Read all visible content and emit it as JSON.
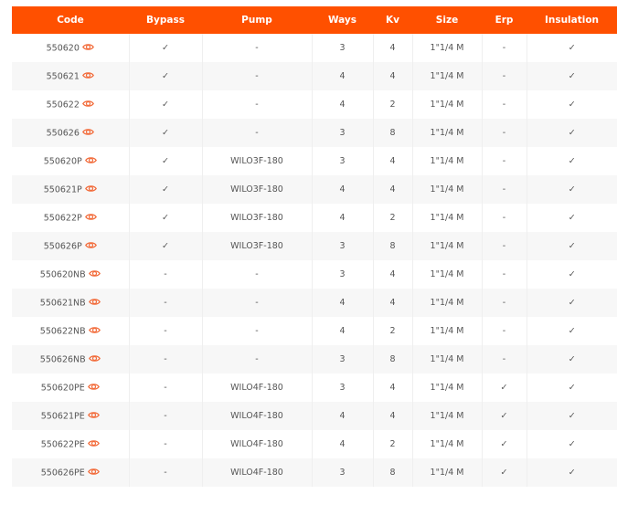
{
  "accent": "#ff5000",
  "headers": [
    "Code",
    "Bypass",
    "Pump",
    "Ways",
    "Kv",
    "Size",
    "Erp",
    "Insulation"
  ],
  "rows": [
    [
      "550620",
      "✓",
      "-",
      "3",
      "4",
      "1\"1/4 M",
      "-",
      "✓"
    ],
    [
      "550621",
      "✓",
      "-",
      "4",
      "4",
      "1\"1/4 M",
      "-",
      "✓"
    ],
    [
      "550622",
      "✓",
      "-",
      "4",
      "2",
      "1\"1/4 M",
      "-",
      "✓"
    ],
    [
      "550626",
      "✓",
      "-",
      "3",
      "8",
      "1\"1/4 M",
      "-",
      "✓"
    ],
    [
      "550620P",
      "✓",
      "WILO3F-180",
      "3",
      "4",
      "1\"1/4 M",
      "-",
      "✓"
    ],
    [
      "550621P",
      "✓",
      "WILO3F-180",
      "4",
      "4",
      "1\"1/4 M",
      "-",
      "✓"
    ],
    [
      "550622P",
      "✓",
      "WILO3F-180",
      "4",
      "2",
      "1\"1/4 M",
      "-",
      "✓"
    ],
    [
      "550626P",
      "✓",
      "WILO3F-180",
      "3",
      "8",
      "1\"1/4 M",
      "-",
      "✓"
    ],
    [
      "550620NB",
      "-",
      "-",
      "3",
      "4",
      "1\"1/4 M",
      "-",
      "✓"
    ],
    [
      "550621NB",
      "-",
      "-",
      "4",
      "4",
      "1\"1/4 M",
      "-",
      "✓"
    ],
    [
      "550622NB",
      "-",
      "-",
      "4",
      "2",
      "1\"1/4 M",
      "-",
      "✓"
    ],
    [
      "550626NB",
      "-",
      "-",
      "3",
      "8",
      "1\"1/4 M",
      "-",
      "✓"
    ],
    [
      "550620PE",
      "-",
      "WILO4F-180",
      "3",
      "4",
      "1\"1/4 M",
      "✓",
      "✓"
    ],
    [
      "550621PE",
      "-",
      "WILO4F-180",
      "4",
      "4",
      "1\"1/4 M",
      "✓",
      "✓"
    ],
    [
      "550622PE",
      "-",
      "WILO4F-180",
      "4",
      "2",
      "1\"1/4 M",
      "✓",
      "✓"
    ],
    [
      "550626PE",
      "-",
      "WILO4F-180",
      "3",
      "8",
      "1\"1/4 M",
      "✓",
      "✓"
    ]
  ]
}
